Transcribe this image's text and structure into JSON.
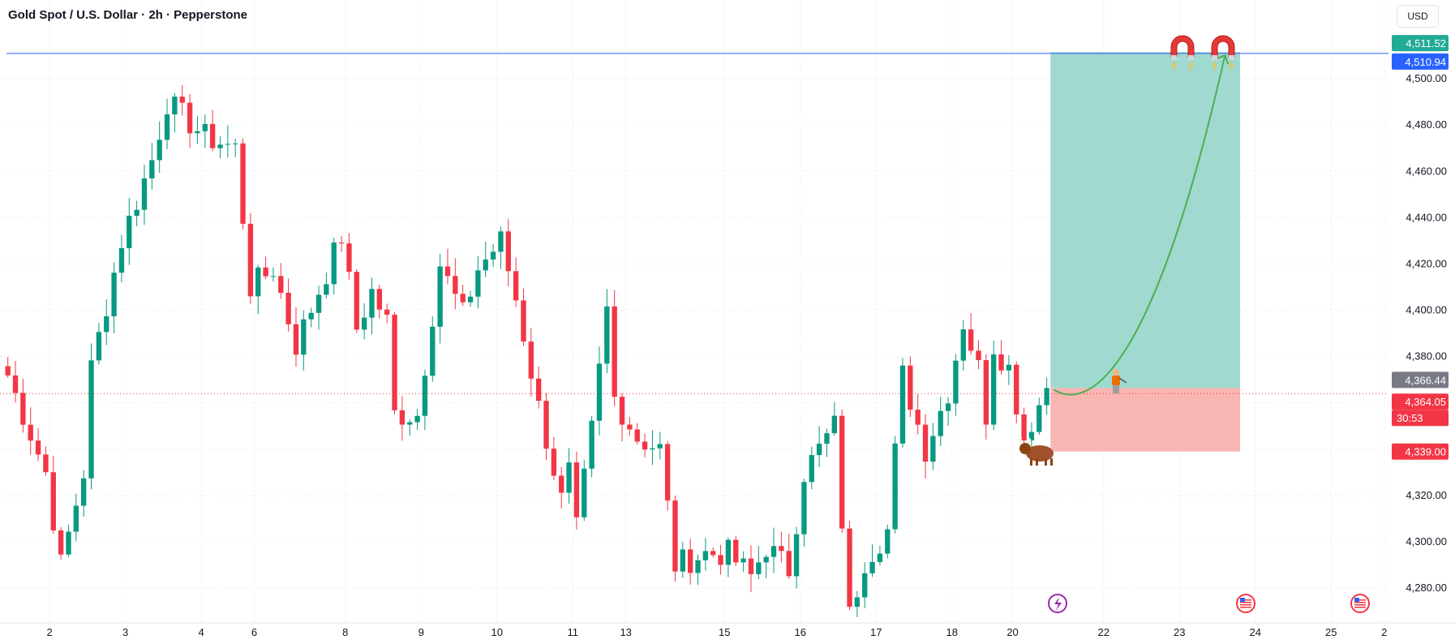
{
  "header": {
    "title": "Gold Spot / U.S. Dollar · 2h · Pepperstone",
    "currency_button": "USD"
  },
  "colors": {
    "up": "#089981",
    "down": "#f23645",
    "grid": "#ebedf1",
    "axis_text": "#131722",
    "resistance_line": "#2962ff",
    "target_zone": "#9fd9cf",
    "stop_zone": "#f8b6b3",
    "arrow": "#4caf50"
  },
  "chart_data": {
    "type": "candlestick",
    "ylim": [
      4265,
      4534
    ],
    "y_ticks": [
      4280,
      4300,
      4320,
      4340,
      4360,
      4380,
      4400,
      4420,
      4440,
      4460,
      4480,
      4500
    ],
    "y_tick_labels": [
      "4,280.00",
      "4,300.00",
      "4,320.00",
      "4,340.00",
      "4,360.00",
      "4,380.00",
      "4,400.00",
      "4,420.00",
      "4,440.00",
      "4,460.00",
      "4,480.00",
      "4,500.00"
    ],
    "x_tick_labels": [
      "2",
      "3",
      "4",
      "6",
      "8",
      "9",
      "10",
      "11",
      "13",
      "15",
      "16",
      "17",
      "18",
      "20",
      "22",
      "23",
      "24",
      "25",
      "2"
    ],
    "x_tick_index": [
      6,
      16,
      26,
      33,
      45,
      55,
      65,
      75,
      82,
      95,
      105,
      115,
      125,
      133,
      145,
      155,
      165,
      175,
      182
    ],
    "total_slots": 190,
    "candle_anchors": [
      [
        0,
        4372
      ],
      [
        5,
        4330
      ],
      [
        7,
        4290
      ],
      [
        10,
        4330
      ],
      [
        11,
        4375
      ],
      [
        15,
        4430
      ],
      [
        19,
        4465
      ],
      [
        21,
        4490
      ],
      [
        26,
        4475
      ],
      [
        30,
        4470
      ],
      [
        32,
        4410
      ],
      [
        35,
        4418
      ],
      [
        38,
        4385
      ],
      [
        44,
        4432
      ],
      [
        46,
        4392
      ],
      [
        48,
        4408
      ],
      [
        50,
        4395
      ],
      [
        51,
        4355
      ],
      [
        54,
        4355
      ],
      [
        57,
        4420
      ],
      [
        60,
        4398
      ],
      [
        62,
        4418
      ],
      [
        65,
        4430
      ],
      [
        67,
        4405
      ],
      [
        70,
        4358
      ],
      [
        73,
        4318
      ],
      [
        74,
        4330
      ],
      [
        75,
        4305
      ],
      [
        77,
        4348
      ],
      [
        79,
        4400
      ],
      [
        80,
        4362
      ],
      [
        83,
        4345
      ],
      [
        86,
        4340
      ],
      [
        88,
        4290
      ],
      [
        92,
        4295
      ],
      [
        95,
        4295
      ],
      [
        98,
        4285
      ],
      [
        100,
        4298
      ],
      [
        103,
        4288
      ],
      [
        105,
        4330
      ],
      [
        109,
        4350
      ],
      [
        111,
        4268
      ],
      [
        113,
        4292
      ],
      [
        116,
        4305
      ],
      [
        118,
        4372
      ],
      [
        121,
        4340
      ],
      [
        124,
        4365
      ],
      [
        126,
        4395
      ],
      [
        128,
        4375
      ],
      [
        129,
        4355
      ],
      [
        130,
        4385
      ],
      [
        132,
        4375
      ],
      [
        134,
        4345
      ],
      [
        137,
        4366.44
      ]
    ],
    "price_labels": {
      "resistance": "4,510.94",
      "target": "4,511.52",
      "last": "4,366.44",
      "current": "4,364.05",
      "countdown": "30:53",
      "stop": "4,339.00"
    },
    "levels": {
      "resistance": 4510.94,
      "target": 4511.52,
      "last": 4366.44,
      "current": 4364.05,
      "stop": 4339.0
    },
    "position": {
      "type": "long",
      "entry": 4366.44,
      "target": 4511.52,
      "stop": 4339.0,
      "start_slot": 138,
      "end_slot": 163
    }
  }
}
